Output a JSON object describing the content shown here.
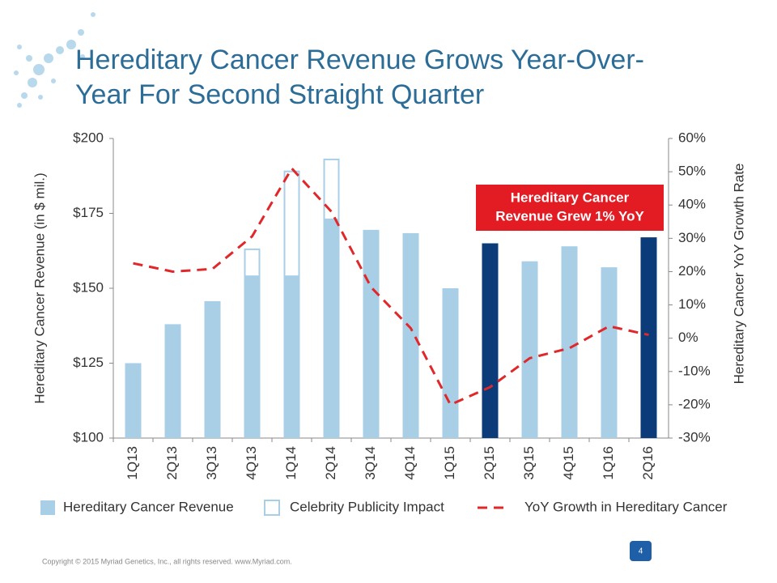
{
  "chart_data": {
    "type": "bar",
    "title": [
      "Hereditary Cancer Revenue Grows Year-Over-",
      "Year For Second Straight Quarter"
    ],
    "y_label": "Hereditary Cancer Revenue (in $ mil.)",
    "y2_label": "Hereditary Cancer YoY Growth Rate",
    "categories": [
      "1Q13",
      "2Q13",
      "3Q13",
      "4Q13",
      "1Q14",
      "2Q14",
      "3Q14",
      "4Q14",
      "1Q15",
      "2Q15",
      "3Q15",
      "4Q15",
      "1Q16",
      "2Q16"
    ],
    "series": [
      {
        "name": "Hereditary Cancer Revenue",
        "type": "bar",
        "color": "#a9cfe6",
        "colors": [
          "#a9cfe6",
          "#a9cfe6",
          "#a9cfe6",
          "#a9cfe6",
          "#a9cfe6",
          "#a9cfe6",
          "#a9cfe6",
          "#a9cfe6",
          "#a9cfe6",
          "#0b3b78",
          "#a9cfe6",
          "#a9cfe6",
          "#a9cfe6",
          "#0b3b78"
        ],
        "values": [
          125,
          138,
          145.7,
          154,
          154,
          173,
          169.5,
          168.4,
          150,
          165,
          159,
          164,
          157,
          167
        ]
      },
      {
        "name": "Celebrity Publicity Impact",
        "type": "stacked-outline",
        "color": "#a9cfe6",
        "values": [
          null,
          null,
          null,
          9,
          35,
          20,
          null,
          null,
          null,
          null,
          null,
          null,
          null,
          null
        ]
      },
      {
        "name": "YoY Growth in Hereditary Cancer",
        "type": "line",
        "axis": "y2",
        "color": "#e0282a",
        "values": [
          22.5,
          20,
          20.8,
          30.6,
          51,
          38,
          15.3,
          3,
          -20,
          -14.7,
          -6,
          -3,
          3.6,
          1
        ]
      }
    ],
    "ylim": [
      100,
      200
    ],
    "yticks": [
      {
        "value": 100,
        "label": "$100"
      },
      {
        "value": 125,
        "label": "$125"
      },
      {
        "value": 150,
        "label": "$150"
      },
      {
        "value": 175,
        "label": "$175"
      },
      {
        "value": 200,
        "label": "$200"
      }
    ],
    "y2lim": [
      -30,
      60
    ],
    "y2ticks": [
      {
        "value": -30,
        "label": "-30%"
      },
      {
        "value": -20,
        "label": "-20%"
      },
      {
        "value": -10,
        "label": "-10%"
      },
      {
        "value": 0,
        "label": "0%"
      },
      {
        "value": 10,
        "label": "10%"
      },
      {
        "value": 20,
        "label": "20%"
      },
      {
        "value": 30,
        "label": "30%"
      },
      {
        "value": 40,
        "label": "40%"
      },
      {
        "value": 50,
        "label": "50%"
      },
      {
        "value": 60,
        "label": "60%"
      }
    ],
    "grid": false,
    "annotation": {
      "lines": [
        "Hereditary Cancer",
        "Revenue Grew 1% YoY"
      ],
      "color": "#e31b23"
    },
    "footer": "Copyright © 2015 Myriad Genetics, Inc., all rights reserved.  www.Myriad.com.",
    "page_number": "4"
  }
}
